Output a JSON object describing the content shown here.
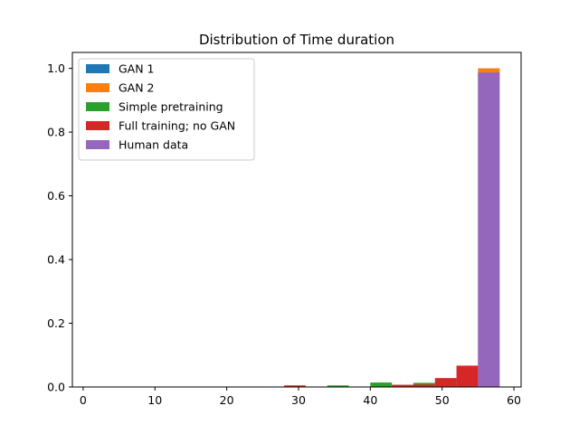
{
  "chart_data": {
    "type": "bar",
    "title": "Distribution of Time duration",
    "xlabel": "",
    "ylabel": "",
    "xlim": [
      -1.5,
      61
    ],
    "ylim": [
      0,
      1.05
    ],
    "x_ticks": [
      0,
      10,
      20,
      30,
      40,
      50,
      60
    ],
    "y_ticks": [
      0.0,
      0.2,
      0.4,
      0.6,
      0.8,
      1.0
    ],
    "grid": false,
    "legend_position": "top-left",
    "series": [
      {
        "name": "GAN 1",
        "color": "#1f77b4",
        "bars": [
          {
            "x0": 55,
            "x1": 58,
            "value": 1.0
          }
        ]
      },
      {
        "name": "GAN 2",
        "color": "#ff7f0e",
        "bars": [
          {
            "x0": 55,
            "x1": 58,
            "value": 1.0
          }
        ]
      },
      {
        "name": "Simple pretraining",
        "color": "#2ca02c",
        "bars": [
          {
            "x0": 34,
            "x1": 37,
            "value": 0.005
          },
          {
            "x0": 40,
            "x1": 43,
            "value": 0.014
          },
          {
            "x0": 46,
            "x1": 49,
            "value": 0.013
          }
        ]
      },
      {
        "name": "Full training; no GAN",
        "color": "#d62728",
        "bars": [
          {
            "x0": 28,
            "x1": 31,
            "value": 0.005
          },
          {
            "x0": 43,
            "x1": 46,
            "value": 0.007
          },
          {
            "x0": 46,
            "x1": 49,
            "value": 0.008
          },
          {
            "x0": 49,
            "x1": 52,
            "value": 0.028
          },
          {
            "x0": 52,
            "x1": 55,
            "value": 0.067
          }
        ]
      },
      {
        "name": "Human data",
        "color": "#9467bd",
        "bars": [
          {
            "x0": 55,
            "x1": 58,
            "value": 0.987
          }
        ]
      }
    ]
  }
}
